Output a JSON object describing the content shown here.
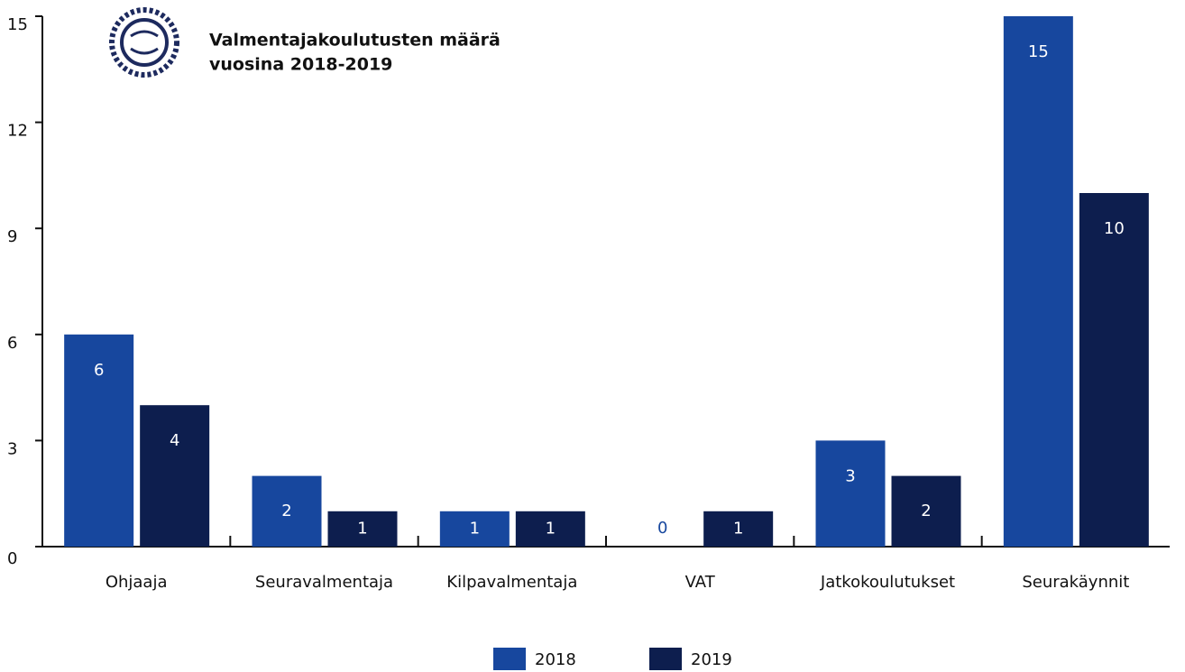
{
  "chart_data": {
    "type": "bar",
    "title": [
      "Valmentajakoulutusten määrä",
      "vuosina 2018-2019"
    ],
    "categories": [
      "Ohjaaja",
      "Seuravalmentaja",
      "Kilpavalmentaja",
      "VAT",
      "Jatkokoulutukset",
      "Seurakäynnit"
    ],
    "series": [
      {
        "name": "2018",
        "color": "#17479e",
        "values": [
          6,
          2,
          1,
          0,
          3,
          15
        ]
      },
      {
        "name": "2019",
        "color": "#0d1e4e",
        "values": [
          4,
          1,
          1,
          1,
          2,
          10
        ]
      }
    ],
    "ylim": [
      0,
      15
    ],
    "yticks": [
      0,
      3,
      6,
      9,
      12,
      15
    ],
    "grid": false,
    "legend": "bottom"
  }
}
